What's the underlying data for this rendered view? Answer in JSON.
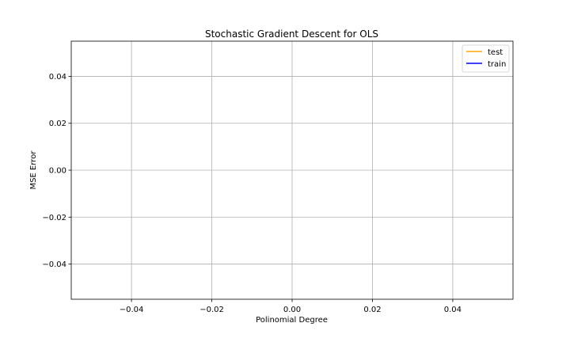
{
  "chart_data": {
    "type": "line",
    "title": "Stochastic Gradient Descent for OLS",
    "xlabel": "Polinomial Degree",
    "ylabel": "MSE Error",
    "xlim": [
      -0.055,
      0.055
    ],
    "ylim": [
      -0.055,
      0.055
    ],
    "xticks": [
      -0.04,
      -0.02,
      0.0,
      0.02,
      0.04
    ],
    "xtick_labels": [
      "−0.04",
      "−0.02",
      "0.00",
      "0.02",
      "0.04"
    ],
    "yticks": [
      -0.04,
      -0.02,
      0.0,
      0.02,
      0.04
    ],
    "ytick_labels": [
      "−0.04",
      "−0.02",
      "0.00",
      "0.02",
      "0.04"
    ],
    "grid": true,
    "legend_position": "top-right",
    "series": [
      {
        "name": "test",
        "color": "#FFA500",
        "x": [],
        "y": []
      },
      {
        "name": "train",
        "color": "#0000FF",
        "x": [],
        "y": []
      }
    ]
  }
}
